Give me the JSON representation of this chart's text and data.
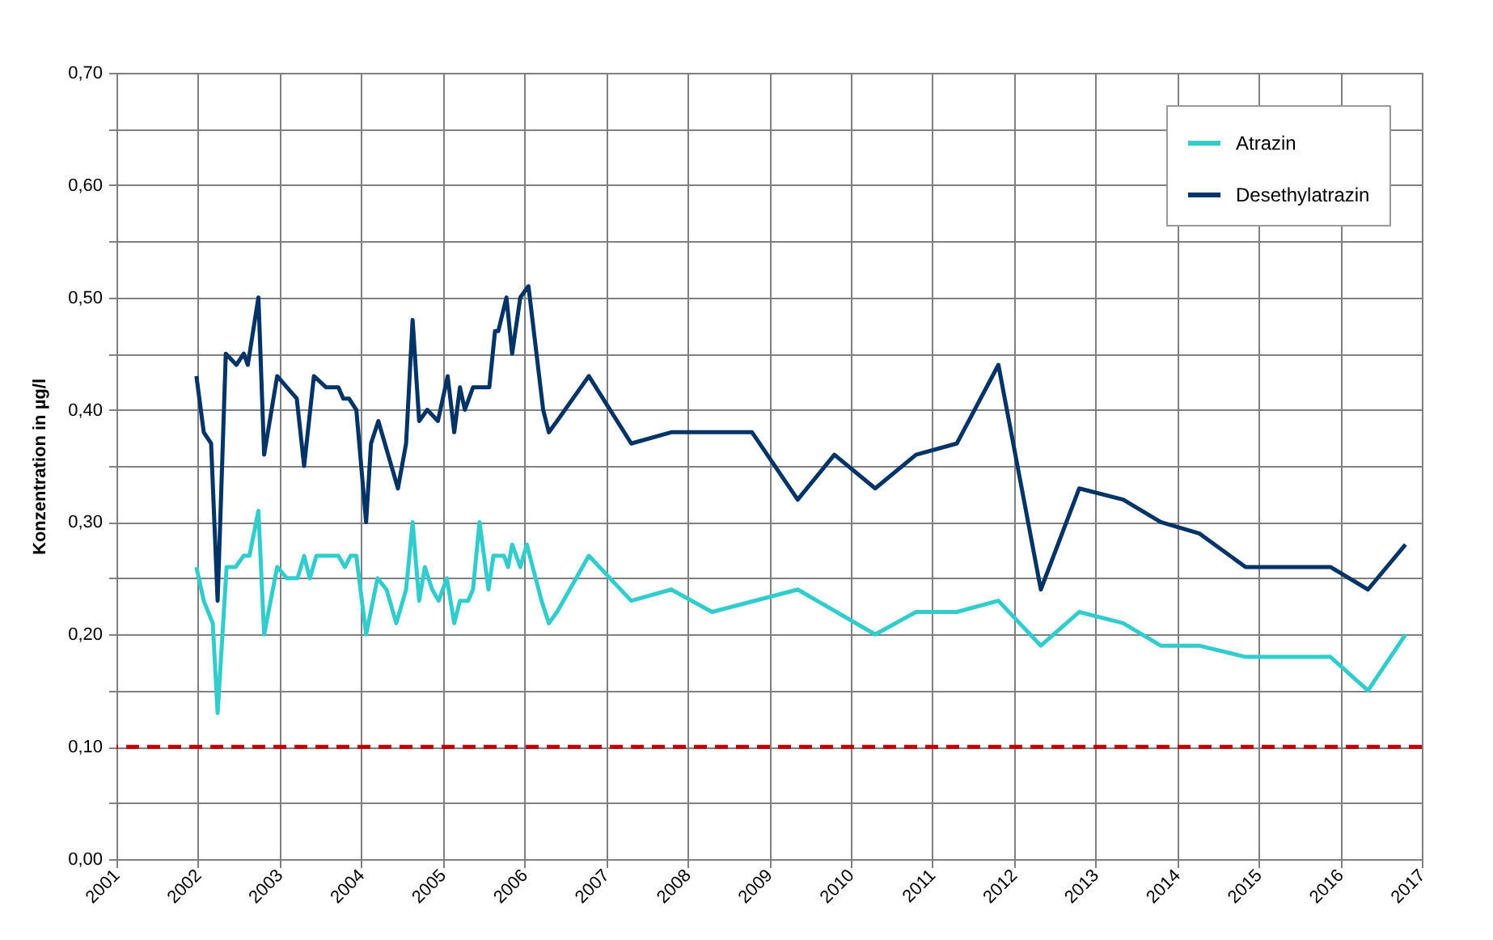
{
  "chart_data": {
    "type": "line",
    "ylabel": "Konzentration in µg/l",
    "xlim": [
      2001,
      2017
    ],
    "xticks": [
      2001,
      2002,
      2003,
      2004,
      2005,
      2006,
      2007,
      2008,
      2009,
      2010,
      2011,
      2012,
      2013,
      2014,
      2015,
      2016,
      2017
    ],
    "ylim": [
      0,
      0.7
    ],
    "yticks": [
      {
        "value": 0,
        "label": "0,00"
      },
      {
        "value": 0.05,
        "label": null
      },
      {
        "value": 0.1,
        "label": "0,10"
      },
      {
        "value": 0.15,
        "label": null
      },
      {
        "value": 0.2,
        "label": "0,20"
      },
      {
        "value": 0.25,
        "label": null
      },
      {
        "value": 0.3,
        "label": "0,30"
      },
      {
        "value": 0.35,
        "label": null
      },
      {
        "value": 0.4,
        "label": "0,40"
      },
      {
        "value": 0.45,
        "label": null
      },
      {
        "value": 0.5,
        "label": "0,50"
      },
      {
        "value": 0.55,
        "label": null
      },
      {
        "value": 0.6,
        "label": "0,60"
      },
      {
        "value": 0.65,
        "label": null
      },
      {
        "value": 0.7,
        "label": "0,70"
      }
    ],
    "grid": true,
    "legend": "top right",
    "line_style": "solid",
    "marker": "none",
    "ref_lines": [
      {
        "axis": "y",
        "value": 0.1,
        "color": "#c00000",
        "line_style": "dashed"
      }
    ],
    "series": [
      {
        "name": "Atrazin",
        "color": "#33cccc",
        "x": [
          2001.98,
          2002.07,
          2002.18,
          2002.24,
          2002.35,
          2002.46,
          2002.56,
          2002.63,
          2002.74,
          2002.81,
          2002.97,
          2003.09,
          2003.22,
          2003.3,
          2003.37,
          2003.45,
          2003.72,
          2003.8,
          2003.87,
          2003.94,
          2004.06,
          2004.2,
          2004.31,
          2004.43,
          2004.55,
          2004.63,
          2004.71,
          2004.78,
          2004.87,
          2004.95,
          2005.05,
          2005.14,
          2005.21,
          2005.31,
          2005.37,
          2005.45,
          2005.56,
          2005.62,
          2005.75,
          2005.8,
          2005.85,
          2005.95,
          2006.03,
          2006.21,
          2006.3,
          2006.4,
          2006.79,
          2007.31,
          2007.8,
          2008.3,
          2009.35,
          2010.3,
          2010.8,
          2011.3,
          2011.81,
          2012.33,
          2012.8,
          2013.34,
          2013.8,
          2014.27,
          2014.84,
          2015.88,
          2016.34,
          2016.8
        ],
        "values": [
          0.26,
          0.23,
          0.21,
          0.13,
          0.26,
          0.26,
          0.27,
          0.27,
          0.31,
          0.2,
          0.26,
          0.25,
          0.25,
          0.27,
          0.25,
          0.27,
          0.27,
          0.26,
          0.27,
          0.27,
          0.2,
          0.25,
          0.24,
          0.21,
          0.24,
          0.3,
          0.23,
          0.26,
          0.24,
          0.23,
          0.25,
          0.21,
          0.23,
          0.23,
          0.24,
          0.3,
          0.24,
          0.27,
          0.27,
          0.26,
          0.28,
          0.26,
          0.28,
          0.23,
          0.21,
          0.22,
          0.27,
          0.23,
          0.24,
          0.22,
          0.24,
          0.2,
          0.22,
          0.22,
          0.23,
          0.19,
          0.22,
          0.21,
          0.19,
          0.19,
          0.18,
          0.18,
          0.15,
          0.2
        ]
      },
      {
        "name": "Desethylatrazin",
        "color": "#003366",
        "x": [
          2001.98,
          2002.07,
          2002.16,
          2002.24,
          2002.34,
          2002.47,
          2002.56,
          2002.61,
          2002.74,
          2002.81,
          2002.97,
          2003.09,
          2003.21,
          2003.3,
          2003.42,
          2003.57,
          2003.72,
          2003.78,
          2003.85,
          2003.94,
          2004.06,
          2004.12,
          2004.21,
          2004.45,
          2004.55,
          2004.63,
          2004.71,
          2004.81,
          2004.94,
          2005.06,
          2005.14,
          2005.21,
          2005.27,
          2005.37,
          2005.57,
          2005.64,
          2005.68,
          2005.78,
          2005.85,
          2005.95,
          2006.05,
          2006.23,
          2006.3,
          2006.4,
          2006.79,
          2007.31,
          2007.8,
          2008.79,
          2009.35,
          2009.8,
          2010.3,
          2010.8,
          2011.3,
          2011.81,
          2012.33,
          2012.8,
          2013.34,
          2013.8,
          2014.27,
          2014.84,
          2015.88,
          2016.34,
          2016.8
        ],
        "values": [
          0.43,
          0.38,
          0.37,
          0.23,
          0.45,
          0.44,
          0.45,
          0.44,
          0.5,
          0.36,
          0.43,
          0.42,
          0.41,
          0.35,
          0.43,
          0.42,
          0.42,
          0.41,
          0.41,
          0.4,
          0.3,
          0.37,
          0.39,
          0.33,
          0.37,
          0.48,
          0.39,
          0.4,
          0.39,
          0.43,
          0.38,
          0.42,
          0.4,
          0.42,
          0.42,
          0.47,
          0.47,
          0.5,
          0.45,
          0.5,
          0.51,
          0.4,
          0.38,
          0.39,
          0.43,
          0.37,
          0.38,
          0.38,
          0.32,
          0.36,
          0.33,
          0.36,
          0.37,
          0.44,
          0.24,
          0.33,
          0.32,
          0.3,
          0.29,
          0.26,
          0.26,
          0.24,
          0.28
        ]
      }
    ]
  }
}
